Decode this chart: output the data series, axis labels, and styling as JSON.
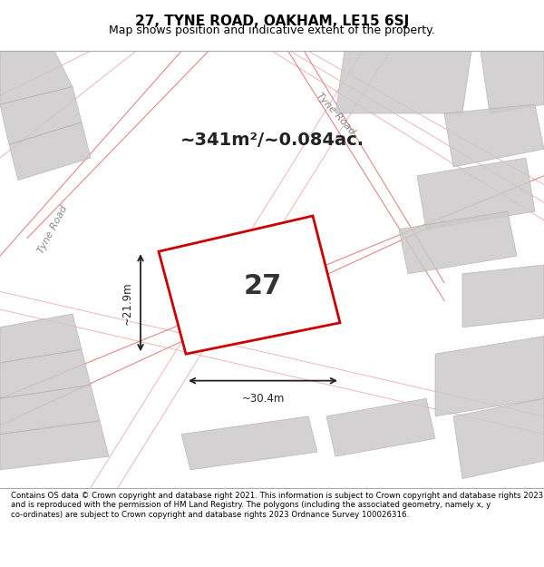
{
  "title": "27, TYNE ROAD, OAKHAM, LE15 6SJ",
  "subtitle": "Map shows position and indicative extent of the property.",
  "footer": "Contains OS data © Crown copyright and database right 2021. This information is subject to Crown copyright and database rights 2023 and is reproduced with the permission of HM Land Registry. The polygons (including the associated geometry, namely x, y co-ordinates) are subject to Crown copyright and database rights 2023 Ordnance Survey 100026316.",
  "area_text": "~341m²/~0.084ac.",
  "plot_number": "27",
  "dim_width": "~30.4m",
  "dim_height": "~21.9m",
  "bg_color": "#f0eeee",
  "map_bg": "#f0eeee",
  "plot_fill": "#f0eeee",
  "plot_edge_color": "#cc0000",
  "road_label_1": "Tyne Road",
  "road_label_2": "Tyne Road",
  "background_buildings_color": "#d8d5d5",
  "grid_line_color": "#e8b8b8"
}
